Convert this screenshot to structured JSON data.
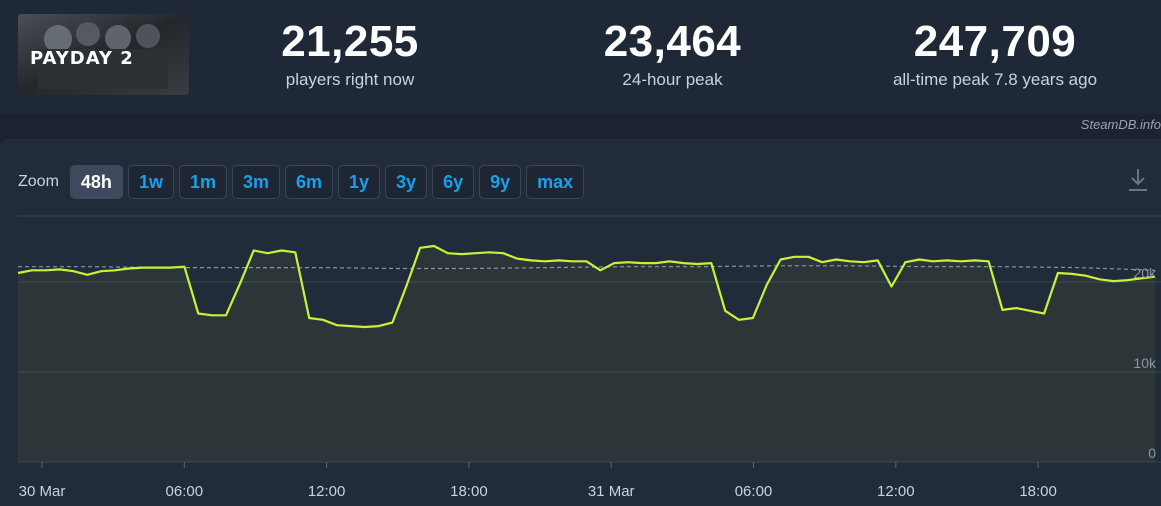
{
  "game": {
    "logo_text": "PAYDAY 2"
  },
  "stats": [
    {
      "value": "21,255",
      "label": "players right now"
    },
    {
      "value": "23,464",
      "label": "24-hour peak"
    },
    {
      "value": "247,709",
      "label": "all-time peak 7.8 years ago"
    }
  ],
  "credit": "SteamDB.info",
  "zoom": {
    "label": "Zoom",
    "options": [
      "48h",
      "1w",
      "1m",
      "3m",
      "6m",
      "1y",
      "3y",
      "6y",
      "9y",
      "max"
    ],
    "active": "48h"
  },
  "colors": {
    "line": "#c8f23a",
    "avg": "#8a95a3",
    "accent": "#1aa0e8"
  },
  "chart_data": {
    "type": "line",
    "x_ticks": [
      "30 Mar",
      "06:00",
      "12:00",
      "18:00",
      "31 Mar",
      "06:00",
      "12:00",
      "18:00"
    ],
    "y_ticks": [
      "0",
      "10k",
      "20k"
    ],
    "ylim": [
      0,
      28000
    ],
    "series": [
      {
        "values": [
          21000,
          21300,
          21300,
          21400,
          21200,
          20800,
          21200,
          21300,
          21500,
          21600,
          21600,
          21600,
          21700,
          16500,
          16300,
          16300,
          19800,
          23500,
          23200,
          23500,
          23300,
          16000,
          15800,
          15200,
          15100,
          15000,
          15100,
          15500,
          19500,
          23800,
          24000,
          23200,
          23100,
          23200,
          23300,
          23200,
          22600,
          22400,
          22300,
          22400,
          22300,
          22300,
          21300,
          22100,
          22200,
          22100,
          22100,
          22300,
          22100,
          22000,
          22100,
          16800,
          15800,
          16000,
          19700,
          22500,
          22800,
          22800,
          22200,
          22500,
          22300,
          22200,
          22400,
          19500,
          22200,
          22500,
          22300,
          22400,
          22300,
          22400,
          22300,
          16900,
          17100,
          16800,
          16500,
          21000,
          20900,
          20700,
          20300,
          20100,
          20200,
          20400,
          20600
        ]
      },
      {
        "name": "avg",
        "values": [
          21700,
          21700,
          21600,
          21600,
          21600,
          21500,
          21500,
          21600,
          21700,
          21700,
          21800,
          21800,
          21700,
          21700,
          21600,
          21300
        ]
      }
    ],
    "grid": true
  }
}
